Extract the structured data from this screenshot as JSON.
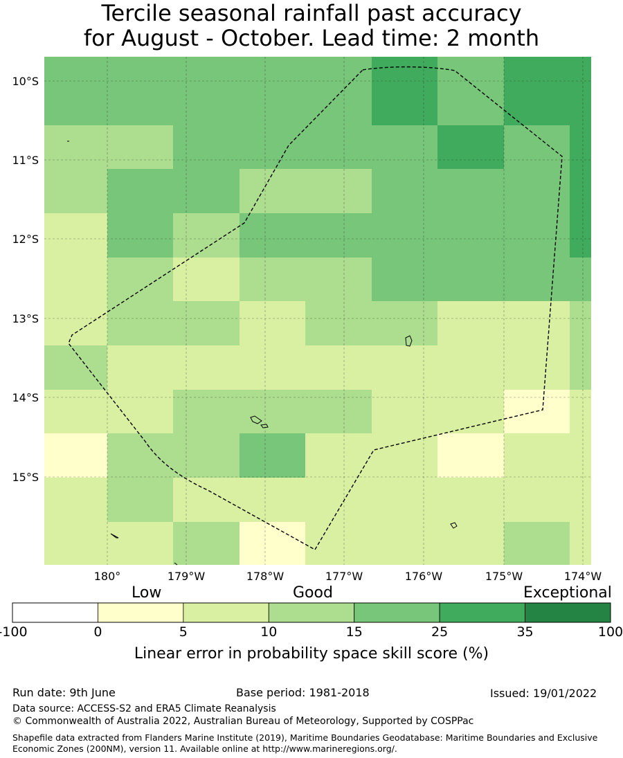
{
  "title_line1": "Tercile seasonal rainfall past accuracy",
  "title_line2": "for August - October. Lead time: 2 month",
  "map": {
    "lat_labels": [
      "10°S",
      "11°S",
      "12°S",
      "13°S",
      "14°S",
      "15°S"
    ],
    "lon_labels": [
      "180°",
      "179°W",
      "178°W",
      "177°W",
      "176°W",
      "175°W",
      "174°W"
    ],
    "grid_rows": [
      [
        3,
        3,
        3,
        3,
        3,
        4,
        3,
        4,
        4
      ],
      [
        2,
        2,
        3,
        3,
        3,
        3,
        4,
        3,
        4
      ],
      [
        2,
        3,
        3,
        2,
        2,
        3,
        3,
        3,
        4
      ],
      [
        1,
        3,
        2,
        3,
        3,
        3,
        3,
        3,
        4
      ],
      [
        1,
        2,
        1,
        2,
        2,
        3,
        3,
        3,
        3
      ],
      [
        1,
        2,
        2,
        1,
        2,
        2,
        1,
        1,
        2
      ],
      [
        2,
        1,
        1,
        1,
        1,
        1,
        1,
        1,
        2
      ],
      [
        1,
        1,
        2,
        2,
        2,
        1,
        1,
        0,
        1
      ],
      [
        0,
        2,
        2,
        3,
        1,
        1,
        0,
        1,
        1
      ],
      [
        1,
        2,
        1,
        1,
        1,
        1,
        1,
        1,
        1
      ],
      [
        1,
        1,
        2,
        0,
        1,
        1,
        1,
        2,
        1
      ]
    ]
  },
  "colorbar": {
    "category_labels": {
      "low": "Low",
      "good": "Good",
      "exceptional": "Exceptional"
    },
    "colors": [
      "#ffffff",
      "#ffffcc",
      "#d9f0a3",
      "#addd8e",
      "#78c679",
      "#41ab5d",
      "#238443"
    ],
    "ticks": [
      "-100",
      "0",
      "5",
      "10",
      "15",
      "25",
      "35",
      "100"
    ],
    "axis_label": "Linear error in probability space skill score (%)"
  },
  "footer": {
    "run_date": "Run date: 9th June",
    "base_period": "Base period: 1981-2018",
    "issued": "Issued: 19/01/2022",
    "data_source": "Data source: ACCESS-S2 and ERA5 Climate Reanalysis",
    "copyright": "© Commonwealth of Australia 2022, Australian Bureau of Meteorology, Supported by COSPPac",
    "shapefile": "Shapefile data extracted from Flanders Marine Institute (2019), Maritime Boundaries Geodatabase: Maritime Boundaries and Exclusive Economic Zones (200NM), version 11. Available online at http://www.marineregions.org/."
  }
}
